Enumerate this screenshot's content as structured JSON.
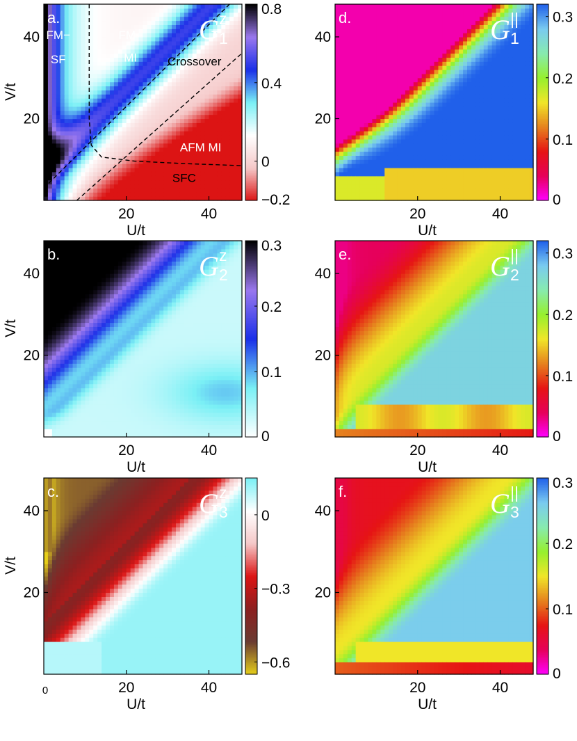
{
  "chart_data": [
    {
      "type": "heatmap",
      "panel_label": "a.",
      "symbol": "G",
      "superscript": "z",
      "subscript": "1",
      "xlabel": "U/t",
      "ylabel": "V/t",
      "xlim": [
        0,
        48
      ],
      "ylim": [
        0,
        48
      ],
      "x_ticks": [
        20,
        40
      ],
      "y_ticks": [
        20,
        40
      ],
      "colorbar": {
        "range": [
          -0.2,
          0.8
        ],
        "ticks": [
          -0.2,
          0,
          0.4,
          0.8
        ],
        "tick_labels": [
          "−0.2",
          "0",
          "0.4",
          "0.8"
        ],
        "colormap": [
          "#dc1414",
          "#f5c8c8",
          "#ffffff",
          "#7af0f5",
          "#1a2fe8",
          "#9a78ee",
          "#000000"
        ]
      },
      "regions": [
        {
          "text": "FM−",
          "u": 3.5,
          "v": 39.5,
          "color": "#ffffff"
        },
        {
          "text": "SF",
          "u": 3.5,
          "v": 33.5,
          "color": "#ffffff"
        },
        {
          "text": "FM−",
          "u": 21,
          "v": 39.5,
          "color": "#ffffff"
        },
        {
          "text": "MI",
          "u": 21,
          "v": 34,
          "color": "#ffffff"
        },
        {
          "text": "Crossover",
          "u": 36.5,
          "v": 33,
          "color": "#000000"
        },
        {
          "text": "AFM MI",
          "u": 38,
          "v": 12,
          "color": "#ffffff"
        },
        {
          "text": "SFC",
          "u": 34,
          "v": 4.5,
          "color": "#000000"
        }
      ],
      "boundaries": [
        {
          "name": "line-v-equals-u",
          "points": [
            [
              0,
              3
            ],
            [
              45,
              48
            ]
          ]
        },
        {
          "name": "line-v-equals-half-u",
          "points": [
            [
              8,
              0
            ],
            [
              48,
              36
            ]
          ]
        },
        {
          "name": "sf-mi-boundary",
          "points": [
            [
              11,
              48
            ],
            [
              11,
              20
            ],
            [
              11.5,
              13.5
            ],
            [
              14,
              10.6
            ],
            [
              22,
              9.6
            ],
            [
              34,
              9
            ],
            [
              48,
              8.5
            ]
          ]
        }
      ]
    },
    {
      "type": "heatmap",
      "panel_label": "b.",
      "symbol": "G",
      "superscript": "z",
      "subscript": "2",
      "xlabel": "U/t",
      "ylabel": "V/t",
      "xlim": [
        0,
        48
      ],
      "ylim": [
        0,
        48
      ],
      "x_ticks": [
        20,
        40
      ],
      "y_ticks": [
        20,
        40
      ],
      "colorbar": {
        "range": [
          0,
          0.3
        ],
        "ticks": [
          0,
          0.1,
          0.2,
          0.3
        ],
        "tick_labels": [
          "0",
          "0.1",
          "0.2",
          "0.3"
        ],
        "colormap": [
          "#ffffff",
          "#7af0f5",
          "#1a2fe8",
          "#9a78ee",
          "#000000"
        ]
      }
    },
    {
      "type": "heatmap",
      "panel_label": "c.",
      "symbol": "G",
      "superscript": "z",
      "subscript": "3",
      "xlabel": "U/t",
      "ylabel": "V/t",
      "xlim": [
        0,
        48
      ],
      "ylim": [
        0,
        48
      ],
      "x_ticks": [
        20,
        40
      ],
      "y_ticks": [
        20,
        40
      ],
      "extra_xtick_label": "0",
      "colorbar": {
        "range": [
          -0.65,
          0.15
        ],
        "ticks": [
          -0.6,
          -0.3,
          0
        ],
        "tick_labels": [
          "−0.6",
          "−0.3",
          "0"
        ],
        "colormap": [
          "#e6cf1a",
          "#6a3b32",
          "#8c2020",
          "#dc1414",
          "#f5c8c8",
          "#ffffff",
          "#7af0f5"
        ]
      }
    },
    {
      "type": "heatmap",
      "panel_label": "d.",
      "symbol": "G",
      "superscript": "||",
      "subscript": "1",
      "xlabel": "U/t",
      "ylabel": "",
      "xlim": [
        0,
        48
      ],
      "ylim": [
        0,
        48
      ],
      "x_ticks": [
        20,
        40
      ],
      "y_ticks": [
        20,
        40
      ],
      "colorbar": {
        "range": [
          0,
          0.32
        ],
        "ticks": [
          0,
          0.1,
          0.2,
          0.3
        ],
        "tick_labels": [
          "0",
          "0.1",
          "0.2",
          "0.3"
        ],
        "colormap": [
          "#ff00ff",
          "#e6005a",
          "#e61414",
          "#e6821e",
          "#f0e628",
          "#96f02d",
          "#87ebaf",
          "#7acbf0",
          "#2060ea"
        ]
      }
    },
    {
      "type": "heatmap",
      "panel_label": "e.",
      "symbol": "G",
      "superscript": "||",
      "subscript": "2",
      "xlabel": "U/t",
      "ylabel": "",
      "xlim": [
        0,
        48
      ],
      "ylim": [
        0,
        48
      ],
      "x_ticks": [
        20,
        40
      ],
      "y_ticks": [
        20,
        40
      ],
      "colorbar": {
        "range": [
          0,
          0.32
        ],
        "ticks": [
          0,
          0.1,
          0.2,
          0.3
        ],
        "tick_labels": [
          "0",
          "0.1",
          "0.2",
          "0.3"
        ],
        "colormap": [
          "#ff00ff",
          "#e6005a",
          "#e61414",
          "#e6821e",
          "#f0e628",
          "#96f02d",
          "#87ebaf",
          "#7acbf0",
          "#2060ea"
        ]
      }
    },
    {
      "type": "heatmap",
      "panel_label": "f.",
      "symbol": "G",
      "superscript": "||",
      "subscript": "3",
      "xlabel": "U/t",
      "ylabel": "",
      "xlim": [
        0,
        48
      ],
      "ylim": [
        0,
        48
      ],
      "x_ticks": [
        20,
        40
      ],
      "y_ticks": [
        20,
        40
      ],
      "colorbar": {
        "range": [
          0,
          0.3
        ],
        "ticks": [
          0,
          0.1,
          0.2,
          0.3
        ],
        "tick_labels": [
          "0",
          "0.1",
          "0.2",
          "0.3"
        ],
        "colormap": [
          "#ff00ff",
          "#e6005a",
          "#e61414",
          "#e6821e",
          "#f0e628",
          "#96f02d",
          "#87ebaf",
          "#7acbf0",
          "#2060ea"
        ]
      }
    }
  ]
}
